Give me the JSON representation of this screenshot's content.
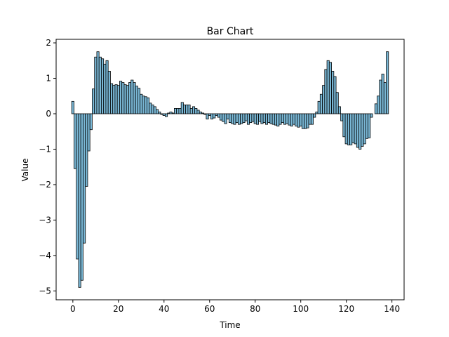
{
  "chart_data": {
    "type": "bar",
    "title": "Bar Chart",
    "x_label": "Time",
    "y_label": "Value",
    "x": [
      0,
      1,
      2,
      3,
      4,
      5,
      6,
      7,
      8,
      9,
      10,
      11,
      12,
      13,
      14,
      15,
      16,
      17,
      18,
      19,
      20,
      21,
      22,
      23,
      24,
      25,
      26,
      27,
      28,
      29,
      30,
      31,
      32,
      33,
      34,
      35,
      36,
      37,
      38,
      39,
      40,
      41,
      42,
      43,
      44,
      45,
      46,
      47,
      48,
      49,
      50,
      51,
      52,
      53,
      54,
      55,
      56,
      57,
      58,
      59,
      60,
      61,
      62,
      63,
      64,
      65,
      66,
      67,
      68,
      69,
      70,
      71,
      72,
      73,
      74,
      75,
      76,
      77,
      78,
      79,
      80,
      81,
      82,
      83,
      84,
      85,
      86,
      87,
      88,
      89,
      90,
      91,
      92,
      93,
      94,
      95,
      96,
      97,
      98,
      99,
      100,
      101,
      102,
      103,
      104,
      105,
      106,
      107,
      108,
      109,
      110,
      111,
      112,
      113,
      114,
      115,
      116,
      117,
      118,
      119,
      120,
      121,
      122,
      123,
      124,
      125,
      126,
      127,
      128,
      129,
      130,
      131,
      132,
      133,
      134,
      135,
      136,
      137,
      138
    ],
    "values": [
      0.35,
      -1.55,
      -4.1,
      -4.9,
      -4.7,
      -3.65,
      -2.05,
      -1.05,
      -0.45,
      0.7,
      1.6,
      1.75,
      1.6,
      1.55,
      1.4,
      1.5,
      1.2,
      0.85,
      0.8,
      0.82,
      0.8,
      0.92,
      0.88,
      0.82,
      0.8,
      0.88,
      0.95,
      0.88,
      0.78,
      0.72,
      0.55,
      0.5,
      0.48,
      0.45,
      0.3,
      0.25,
      0.2,
      0.12,
      0.05,
      -0.02,
      -0.05,
      -0.08,
      0.02,
      0.05,
      0.02,
      0.15,
      0.15,
      0.15,
      0.32,
      0.25,
      0.25,
      0.25,
      0.15,
      0.2,
      0.15,
      0.1,
      0.05,
      0.02,
      -0.02,
      -0.15,
      -0.05,
      -0.15,
      -0.12,
      -0.05,
      -0.1,
      -0.18,
      -0.22,
      -0.28,
      -0.15,
      -0.25,
      -0.28,
      -0.3,
      -0.25,
      -0.3,
      -0.28,
      -0.25,
      -0.2,
      -0.3,
      -0.25,
      -0.22,
      -0.28,
      -0.3,
      -0.22,
      -0.28,
      -0.25,
      -0.3,
      -0.25,
      -0.28,
      -0.3,
      -0.32,
      -0.35,
      -0.3,
      -0.25,
      -0.3,
      -0.28,
      -0.32,
      -0.35,
      -0.3,
      -0.35,
      -0.38,
      -0.35,
      -0.42,
      -0.42,
      -0.4,
      -0.3,
      -0.3,
      -0.1,
      0.05,
      0.35,
      0.55,
      0.8,
      1.25,
      1.5,
      1.45,
      1.2,
      1.05,
      0.6,
      0.2,
      -0.2,
      -0.65,
      -0.85,
      -0.88,
      -0.88,
      -0.82,
      -0.85,
      -0.95,
      -1.0,
      -0.92,
      -0.85,
      -0.7,
      -0.68,
      -0.1,
      0.0,
      0.28,
      0.5,
      0.95,
      1.12,
      0.88,
      1.75
    ],
    "color": "#7ab8d6",
    "xlim": [
      -7.34,
      145.34
    ],
    "xticks": [
      0,
      20,
      40,
      60,
      80,
      100,
      120,
      140
    ],
    "ylim": [
      -5.25,
      2.1
    ],
    "yticks": [
      {
        "value": -5,
        "label": "−5"
      },
      {
        "value": -4,
        "label": "−4"
      },
      {
        "value": -3,
        "label": "−3"
      },
      {
        "value": -2,
        "label": "−2"
      },
      {
        "value": -1,
        "label": "−1"
      },
      0,
      1,
      2
    ]
  }
}
